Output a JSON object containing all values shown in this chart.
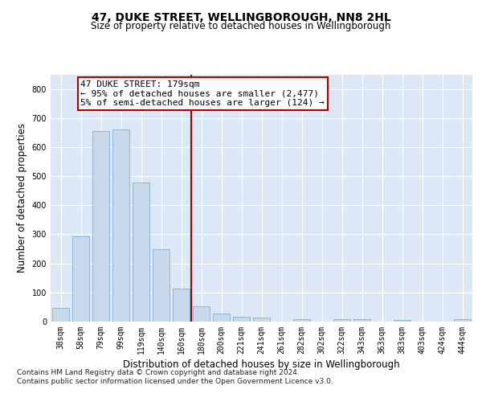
{
  "title": "47, DUKE STREET, WELLINGBOROUGH, NN8 2HL",
  "subtitle": "Size of property relative to detached houses in Wellingborough",
  "xlabel": "Distribution of detached houses by size in Wellingborough",
  "ylabel": "Number of detached properties",
  "categories": [
    "38sqm",
    "58sqm",
    "79sqm",
    "99sqm",
    "119sqm",
    "140sqm",
    "160sqm",
    "180sqm",
    "200sqm",
    "221sqm",
    "241sqm",
    "261sqm",
    "282sqm",
    "302sqm",
    "322sqm",
    "343sqm",
    "363sqm",
    "383sqm",
    "403sqm",
    "424sqm",
    "444sqm"
  ],
  "values": [
    48,
    293,
    655,
    660,
    478,
    250,
    114,
    52,
    27,
    17,
    15,
    0,
    7,
    0,
    8,
    8,
    0,
    5,
    0,
    0,
    8
  ],
  "bar_color": "#c9d9ec",
  "bar_edge_color": "#7fafd4",
  "background_color": "#dce8f5",
  "grid_color": "#ffffff",
  "vline_index": 7,
  "vline_color": "#aa0000",
  "annotation_line1": "47 DUKE STREET: 179sqm",
  "annotation_line2": "← 95% of detached houses are smaller (2,477)",
  "annotation_line3": "5% of semi-detached houses are larger (124) →",
  "annotation_box_edgecolor": "#aa0000",
  "ylim": [
    0,
    850
  ],
  "yticks": [
    0,
    100,
    200,
    300,
    400,
    500,
    600,
    700,
    800
  ],
  "footer1": "Contains HM Land Registry data © Crown copyright and database right 2024.",
  "footer2": "Contains public sector information licensed under the Open Government Licence v3.0.",
  "title_fontsize": 10,
  "subtitle_fontsize": 8.5,
  "tick_fontsize": 7,
  "ylabel_fontsize": 8.5,
  "xlabel_fontsize": 8.5,
  "annotation_fontsize": 8,
  "footer_fontsize": 6.5
}
